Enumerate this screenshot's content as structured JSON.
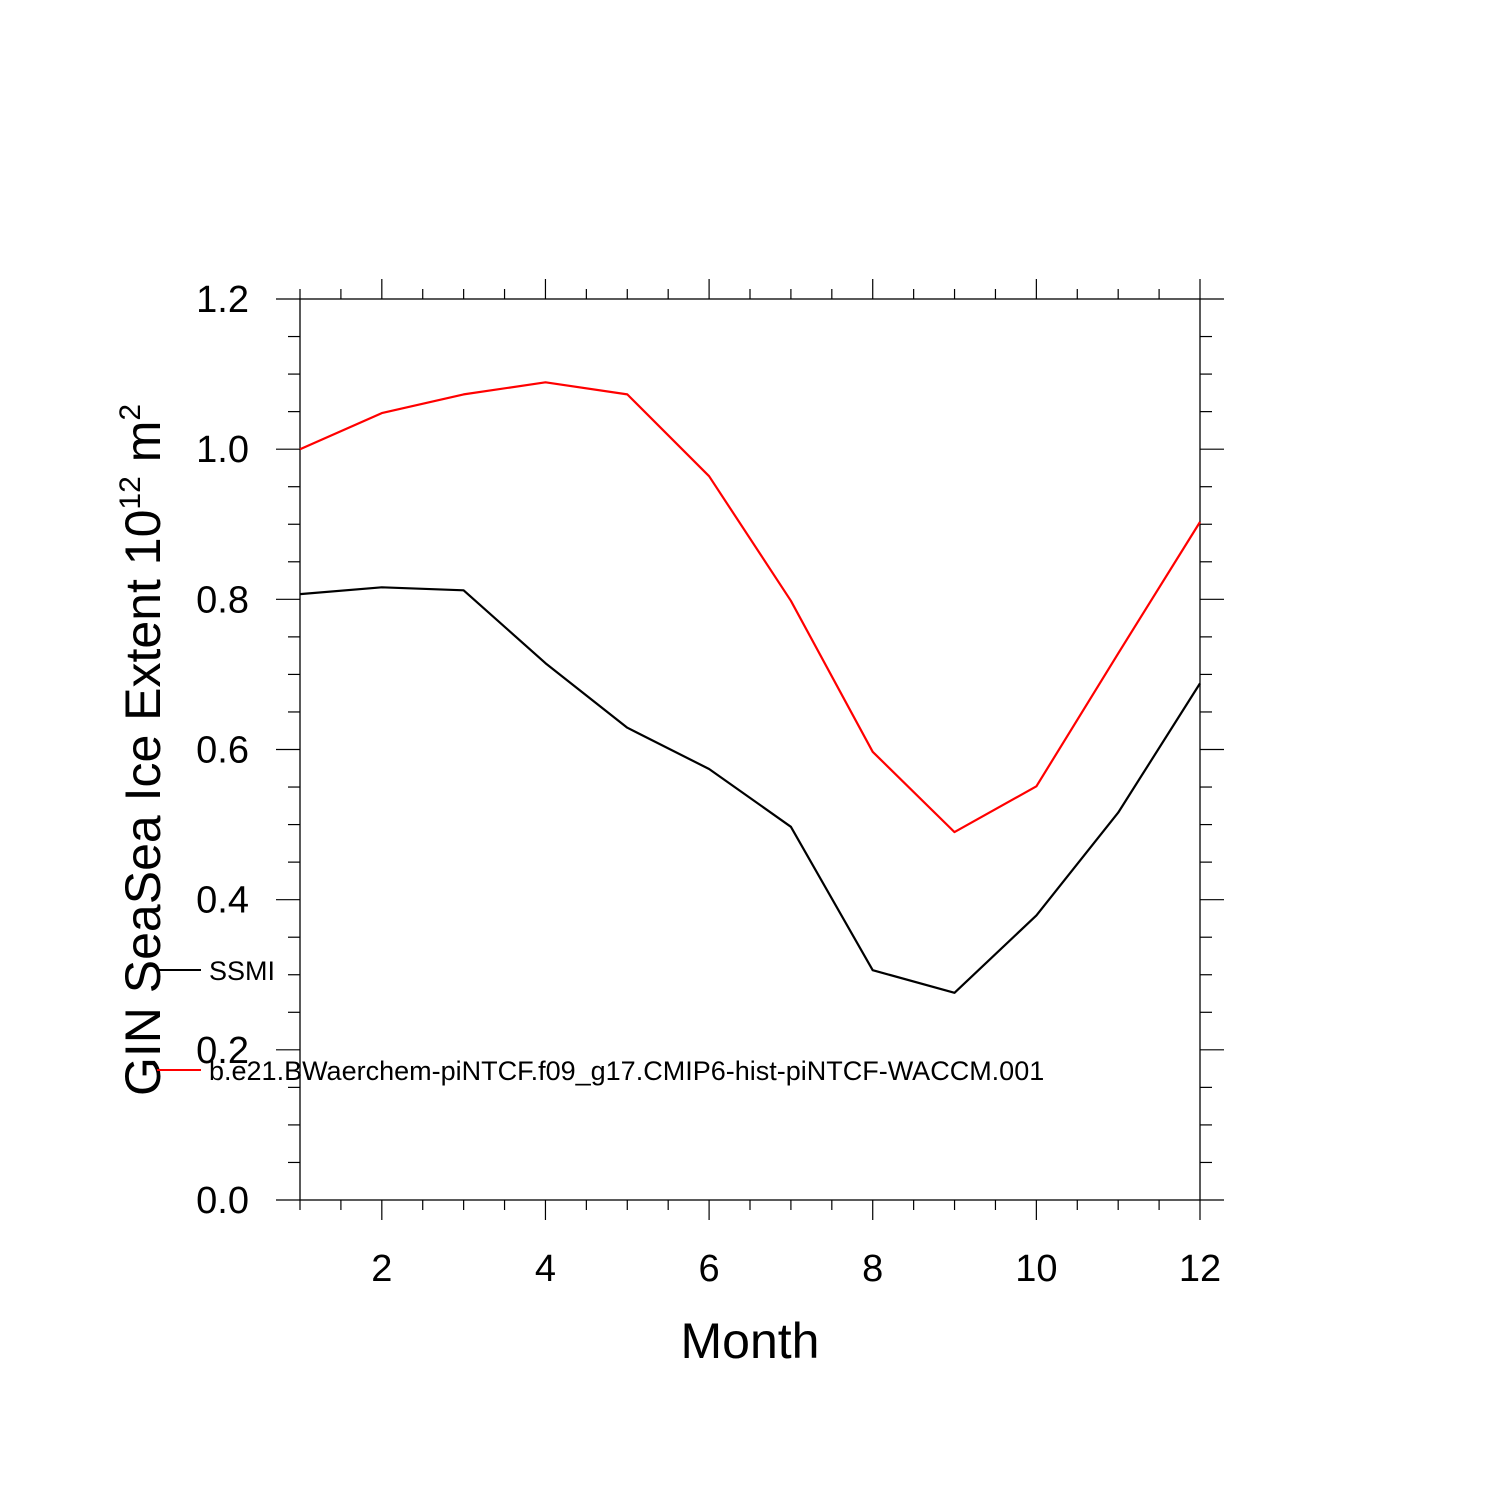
{
  "chart_data": {
    "type": "line",
    "title": "",
    "xlabel": "Month",
    "ylabel": {
      "text": "GIN SeaSea Ice Extent 10",
      "exponent": "12",
      "unit": " m",
      "unit_exponent": "2"
    },
    "xlim": [
      1,
      12
    ],
    "ylim": [
      0.0,
      1.2
    ],
    "x_ticks": [
      2,
      4,
      6,
      8,
      10,
      12
    ],
    "x_tick_labels": [
      "2",
      "4",
      "6",
      "8",
      "10",
      "12"
    ],
    "y_ticks": [
      0.0,
      0.2,
      0.4,
      0.6,
      0.8,
      1.0,
      1.2
    ],
    "y_tick_labels": [
      "0.0",
      "0.2",
      "0.4",
      "0.6",
      "0.8",
      "1.0",
      "1.2"
    ],
    "grid": false,
    "legend_placement": "left, overlapping the lower part of the plot",
    "x": [
      1,
      2,
      3,
      4,
      5,
      6,
      7,
      8,
      9,
      10,
      11,
      12
    ],
    "series": [
      {
        "name": "SSMI",
        "color": "#000000",
        "values": [
          0.807,
          0.816,
          0.812,
          0.715,
          0.629,
          0.574,
          0.497,
          0.306,
          0.276,
          0.379,
          0.516,
          0.688
        ]
      },
      {
        "name": "b.e21.BWaerchem-piNTCF.f09_g17.CMIP6-hist-piNTCF-WACCM.001",
        "color": "#ff0000",
        "values": [
          1.0,
          1.048,
          1.073,
          1.089,
          1.073,
          0.964,
          0.798,
          0.597,
          0.49,
          0.551,
          0.728,
          0.903
        ]
      }
    ]
  }
}
